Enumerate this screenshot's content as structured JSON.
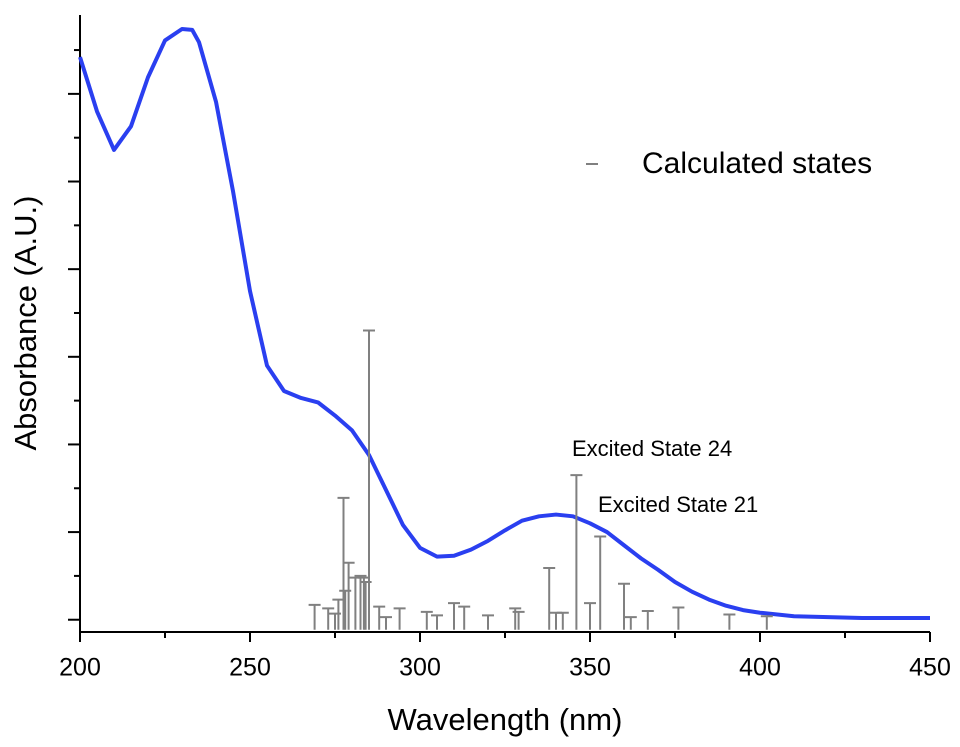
{
  "chart_data": {
    "type": "line",
    "x_label": "Wavelength (nm)",
    "y_label": "Absorbance (A.U.)",
    "xlim": [
      200,
      450
    ],
    "xticks": [
      200,
      250,
      300,
      350,
      400,
      450
    ],
    "ylim": [
      -0.14,
      6.9
    ],
    "yticks": [
      0,
      0.5,
      1,
      1.5,
      2,
      2.5,
      3,
      3.5,
      4,
      4.5,
      5,
      5.5,
      6,
      6.5
    ],
    "legend_position": "upper right",
    "annotations": [
      "Excited State 24",
      "Excited State 21"
    ],
    "series": [
      {
        "color": "#2a3ff0",
        "x": [
          200,
          205,
          210,
          215,
          220,
          225,
          230,
          233,
          235,
          240,
          245,
          250,
          255,
          260,
          265,
          270,
          275,
          280,
          285,
          290,
          295,
          300,
          305,
          310,
          315,
          320,
          325,
          330,
          335,
          340,
          345,
          350,
          355,
          360,
          365,
          370,
          375,
          380,
          385,
          390,
          395,
          400,
          410,
          420,
          430,
          440,
          450
        ],
        "values": [
          6.42,
          5.8,
          5.36,
          5.63,
          6.19,
          6.61,
          6.74,
          6.73,
          6.59,
          5.91,
          4.89,
          3.75,
          2.9,
          2.61,
          2.53,
          2.48,
          2.33,
          2.16,
          1.88,
          1.48,
          1.08,
          0.82,
          0.72,
          0.73,
          0.8,
          0.9,
          1.02,
          1.13,
          1.18,
          1.2,
          1.18,
          1.1,
          1.0,
          0.85,
          0.7,
          0.57,
          0.43,
          0.32,
          0.23,
          0.16,
          0.11,
          0.08,
          0.04,
          0.03,
          0.02,
          0.02,
          0.02
        ]
      },
      {
        "name": "Calculated states",
        "type": "stick",
        "color": "#808080",
        "x": [
          269,
          273,
          275,
          276,
          277.5,
          278,
          279,
          281,
          282.5,
          283.5,
          284,
          285,
          288,
          290,
          294,
          302,
          305,
          310,
          313,
          320,
          328,
          329,
          338,
          340,
          342,
          346,
          350,
          353,
          360,
          362,
          367,
          376,
          391,
          402
        ],
        "values": [
          0.17,
          0.13,
          0.07,
          0.23,
          1.39,
          0.33,
          0.65,
          0.48,
          0.5,
          0.48,
          0.43,
          3.3,
          0.15,
          0.03,
          0.13,
          0.09,
          0.05,
          0.19,
          0.15,
          0.05,
          0.13,
          0.09,
          0.59,
          0.08,
          0.08,
          1.65,
          0.19,
          0.95,
          0.41,
          0.03,
          0.1,
          0.14,
          0.06,
          0.04
        ]
      }
    ]
  }
}
